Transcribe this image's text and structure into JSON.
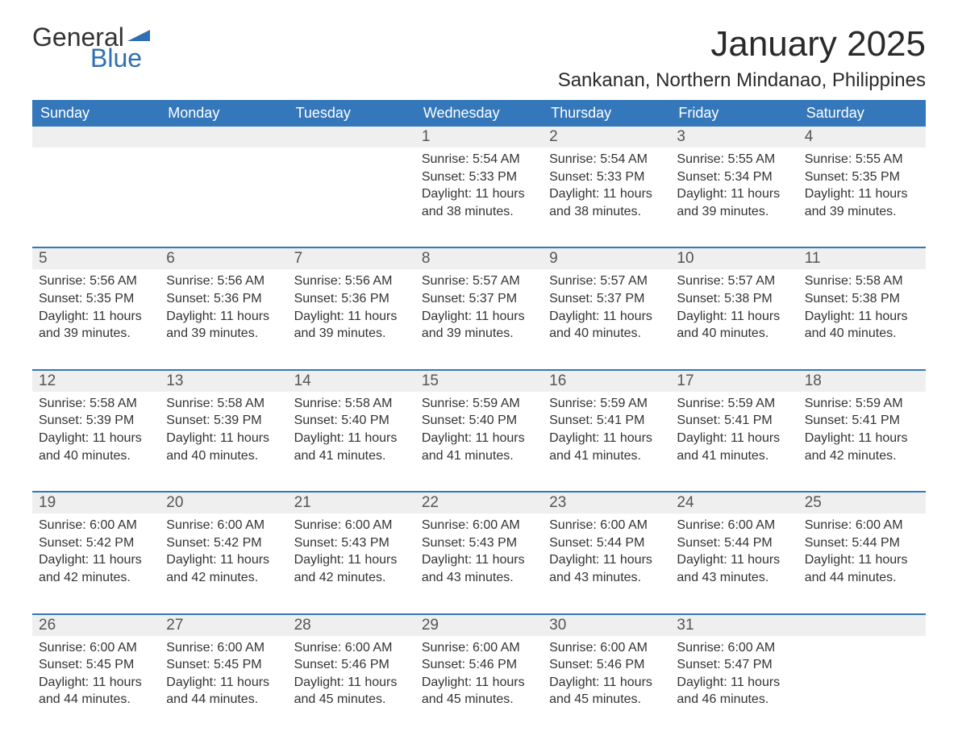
{
  "logo": {
    "text_general": "General",
    "text_blue": "Blue",
    "icon_color": "#2f6fb3"
  },
  "title": "January 2025",
  "location": "Sankanan, Northern Mindanao, Philippines",
  "colors": {
    "header_bg": "#3478bb",
    "header_text": "#ffffff",
    "daynum_bg": "#efefef",
    "daynum_text": "#555555",
    "body_text": "#333333",
    "rule": "#3478bb"
  },
  "day_headers": [
    "Sunday",
    "Monday",
    "Tuesday",
    "Wednesday",
    "Thursday",
    "Friday",
    "Saturday"
  ],
  "weeks": [
    {
      "days": [
        {
          "num": "",
          "sunrise": "",
          "sunset": "",
          "daylight": ""
        },
        {
          "num": "",
          "sunrise": "",
          "sunset": "",
          "daylight": ""
        },
        {
          "num": "",
          "sunrise": "",
          "sunset": "",
          "daylight": ""
        },
        {
          "num": "1",
          "sunrise": "Sunrise: 5:54 AM",
          "sunset": "Sunset: 5:33 PM",
          "daylight": "Daylight: 11 hours and 38 minutes."
        },
        {
          "num": "2",
          "sunrise": "Sunrise: 5:54 AM",
          "sunset": "Sunset: 5:33 PM",
          "daylight": "Daylight: 11 hours and 38 minutes."
        },
        {
          "num": "3",
          "sunrise": "Sunrise: 5:55 AM",
          "sunset": "Sunset: 5:34 PM",
          "daylight": "Daylight: 11 hours and 39 minutes."
        },
        {
          "num": "4",
          "sunrise": "Sunrise: 5:55 AM",
          "sunset": "Sunset: 5:35 PM",
          "daylight": "Daylight: 11 hours and 39 minutes."
        }
      ]
    },
    {
      "days": [
        {
          "num": "5",
          "sunrise": "Sunrise: 5:56 AM",
          "sunset": "Sunset: 5:35 PM",
          "daylight": "Daylight: 11 hours and 39 minutes."
        },
        {
          "num": "6",
          "sunrise": "Sunrise: 5:56 AM",
          "sunset": "Sunset: 5:36 PM",
          "daylight": "Daylight: 11 hours and 39 minutes."
        },
        {
          "num": "7",
          "sunrise": "Sunrise: 5:56 AM",
          "sunset": "Sunset: 5:36 PM",
          "daylight": "Daylight: 11 hours and 39 minutes."
        },
        {
          "num": "8",
          "sunrise": "Sunrise: 5:57 AM",
          "sunset": "Sunset: 5:37 PM",
          "daylight": "Daylight: 11 hours and 39 minutes."
        },
        {
          "num": "9",
          "sunrise": "Sunrise: 5:57 AM",
          "sunset": "Sunset: 5:37 PM",
          "daylight": "Daylight: 11 hours and 40 minutes."
        },
        {
          "num": "10",
          "sunrise": "Sunrise: 5:57 AM",
          "sunset": "Sunset: 5:38 PM",
          "daylight": "Daylight: 11 hours and 40 minutes."
        },
        {
          "num": "11",
          "sunrise": "Sunrise: 5:58 AM",
          "sunset": "Sunset: 5:38 PM",
          "daylight": "Daylight: 11 hours and 40 minutes."
        }
      ]
    },
    {
      "days": [
        {
          "num": "12",
          "sunrise": "Sunrise: 5:58 AM",
          "sunset": "Sunset: 5:39 PM",
          "daylight": "Daylight: 11 hours and 40 minutes."
        },
        {
          "num": "13",
          "sunrise": "Sunrise: 5:58 AM",
          "sunset": "Sunset: 5:39 PM",
          "daylight": "Daylight: 11 hours and 40 minutes."
        },
        {
          "num": "14",
          "sunrise": "Sunrise: 5:58 AM",
          "sunset": "Sunset: 5:40 PM",
          "daylight": "Daylight: 11 hours and 41 minutes."
        },
        {
          "num": "15",
          "sunrise": "Sunrise: 5:59 AM",
          "sunset": "Sunset: 5:40 PM",
          "daylight": "Daylight: 11 hours and 41 minutes."
        },
        {
          "num": "16",
          "sunrise": "Sunrise: 5:59 AM",
          "sunset": "Sunset: 5:41 PM",
          "daylight": "Daylight: 11 hours and 41 minutes."
        },
        {
          "num": "17",
          "sunrise": "Sunrise: 5:59 AM",
          "sunset": "Sunset: 5:41 PM",
          "daylight": "Daylight: 11 hours and 41 minutes."
        },
        {
          "num": "18",
          "sunrise": "Sunrise: 5:59 AM",
          "sunset": "Sunset: 5:41 PM",
          "daylight": "Daylight: 11 hours and 42 minutes."
        }
      ]
    },
    {
      "days": [
        {
          "num": "19",
          "sunrise": "Sunrise: 6:00 AM",
          "sunset": "Sunset: 5:42 PM",
          "daylight": "Daylight: 11 hours and 42 minutes."
        },
        {
          "num": "20",
          "sunrise": "Sunrise: 6:00 AM",
          "sunset": "Sunset: 5:42 PM",
          "daylight": "Daylight: 11 hours and 42 minutes."
        },
        {
          "num": "21",
          "sunrise": "Sunrise: 6:00 AM",
          "sunset": "Sunset: 5:43 PM",
          "daylight": "Daylight: 11 hours and 42 minutes."
        },
        {
          "num": "22",
          "sunrise": "Sunrise: 6:00 AM",
          "sunset": "Sunset: 5:43 PM",
          "daylight": "Daylight: 11 hours and 43 minutes."
        },
        {
          "num": "23",
          "sunrise": "Sunrise: 6:00 AM",
          "sunset": "Sunset: 5:44 PM",
          "daylight": "Daylight: 11 hours and 43 minutes."
        },
        {
          "num": "24",
          "sunrise": "Sunrise: 6:00 AM",
          "sunset": "Sunset: 5:44 PM",
          "daylight": "Daylight: 11 hours and 43 minutes."
        },
        {
          "num": "25",
          "sunrise": "Sunrise: 6:00 AM",
          "sunset": "Sunset: 5:44 PM",
          "daylight": "Daylight: 11 hours and 44 minutes."
        }
      ]
    },
    {
      "days": [
        {
          "num": "26",
          "sunrise": "Sunrise: 6:00 AM",
          "sunset": "Sunset: 5:45 PM",
          "daylight": "Daylight: 11 hours and 44 minutes."
        },
        {
          "num": "27",
          "sunrise": "Sunrise: 6:00 AM",
          "sunset": "Sunset: 5:45 PM",
          "daylight": "Daylight: 11 hours and 44 minutes."
        },
        {
          "num": "28",
          "sunrise": "Sunrise: 6:00 AM",
          "sunset": "Sunset: 5:46 PM",
          "daylight": "Daylight: 11 hours and 45 minutes."
        },
        {
          "num": "29",
          "sunrise": "Sunrise: 6:00 AM",
          "sunset": "Sunset: 5:46 PM",
          "daylight": "Daylight: 11 hours and 45 minutes."
        },
        {
          "num": "30",
          "sunrise": "Sunrise: 6:00 AM",
          "sunset": "Sunset: 5:46 PM",
          "daylight": "Daylight: 11 hours and 45 minutes."
        },
        {
          "num": "31",
          "sunrise": "Sunrise: 6:00 AM",
          "sunset": "Sunset: 5:47 PM",
          "daylight": "Daylight: 11 hours and 46 minutes."
        },
        {
          "num": "",
          "sunrise": "",
          "sunset": "",
          "daylight": ""
        }
      ]
    }
  ]
}
